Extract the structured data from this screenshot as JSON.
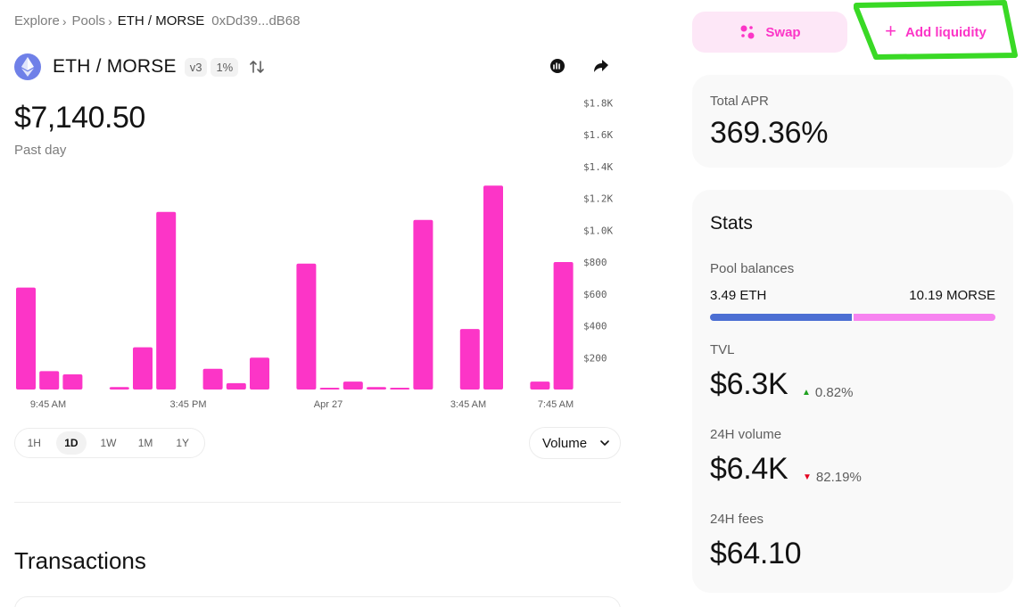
{
  "breadcrumb": {
    "explore": "Explore",
    "pools": "Pools",
    "separator": "›",
    "current": "ETH / MORSE",
    "address": "0xDd39...dB68"
  },
  "pool": {
    "pair": "ETH / MORSE",
    "version": "v3",
    "fee": "1%",
    "token_icon": "eth-icon",
    "header_icons": [
      "explorer-icon",
      "share-icon"
    ]
  },
  "price": {
    "value": "$7,140.50",
    "period": "Past day"
  },
  "chart_data": {
    "type": "bar",
    "bar_color": "#fc35c7",
    "values": [
      640,
      115,
      95,
      0,
      15,
      265,
      1115,
      0,
      130,
      40,
      200,
      0,
      790,
      10,
      50,
      15,
      10,
      1065,
      0,
      380,
      1280,
      0,
      50,
      800
    ],
    "ylim": [
      0,
      1800
    ],
    "y_ticks": [
      "$200",
      "$400",
      "$600",
      "$800",
      "$1.0K",
      "$1.2K",
      "$1.4K",
      "$1.6K",
      "$1.8K"
    ],
    "x_ticks": [
      "9:45 AM",
      "3:45 PM",
      "Apr 27",
      "3:45 AM",
      "7:45 AM"
    ]
  },
  "time_ranges": [
    "1H",
    "1D",
    "1W",
    "1M",
    "1Y"
  ],
  "active_time_range": "1D",
  "chart_type_select": "Volume",
  "transactions": {
    "title": "Transactions"
  },
  "actions": {
    "swap": "Swap",
    "add_liquidity": "Add liquidity",
    "accent": "#fc35c7",
    "highlight_color": "#39d925"
  },
  "apr": {
    "label": "Total APR",
    "value": "369.36%"
  },
  "stats": {
    "title": "Stats",
    "pool_balances_label": "Pool balances",
    "balance_a": "3.49 ETH",
    "balance_b": "10.19 MORSE",
    "balance_a_share": 0.5,
    "balance_a_color": "#4c6fd3",
    "balance_b_color": "#f783f0",
    "tvl_label": "TVL",
    "tvl_value": "$6.3K",
    "tvl_change": "0.82%",
    "tvl_change_dir": "up",
    "volume_label": "24H volume",
    "volume_value": "$6.4K",
    "volume_change": "82.19%",
    "volume_change_dir": "down",
    "fees_label": "24H fees",
    "fees_value": "$64.10",
    "up_color": "#21a121",
    "down_color": "#e4001f"
  }
}
